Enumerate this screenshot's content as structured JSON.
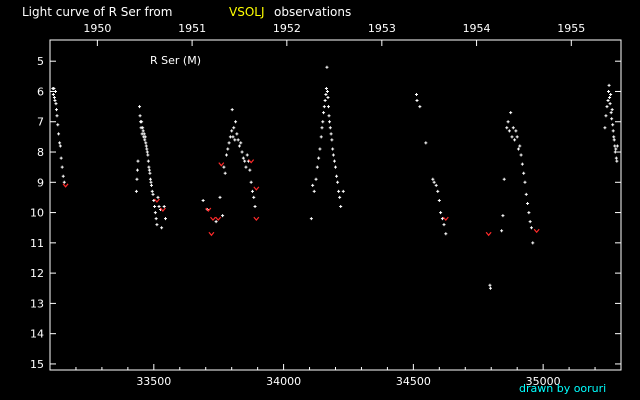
{
  "title": {
    "prefix": "Light curve of R Ser from",
    "source": "VSOLJ",
    "suffix": "observations"
  },
  "credit": "drawn by ooruri",
  "colors": {
    "background": "#000000",
    "axis": "#ffffff",
    "text": "#ffffff",
    "source_highlight": "#ffff00",
    "fainter_than": "#ff2a2a",
    "credit": "#00ffff"
  },
  "chart_data": {
    "type": "scatter",
    "annotation": "R Ser (M)",
    "x_axis": {
      "label": "",
      "range": [
        33100,
        35300
      ],
      "ticks": [
        33500,
        34000,
        34500,
        35000
      ],
      "tick_labels": [
        "33500",
        "34000",
        "34500",
        "35000"
      ]
    },
    "top_axis": {
      "years": [
        1950,
        1951,
        1952,
        1953,
        1954,
        1955
      ],
      "year_jd": [
        33282.5,
        33647.5,
        34012.5,
        34378.5,
        34743.5,
        35108.5
      ],
      "labels": [
        "1950",
        "1951",
        "1952",
        "1953",
        "1954",
        "1955"
      ]
    },
    "y_axis": {
      "label": "",
      "range": [
        4.3,
        15.2
      ],
      "inverted": true,
      "ticks": [
        5,
        6,
        7,
        8,
        9,
        10,
        11,
        12,
        13,
        14,
        15
      ],
      "tick_labels": [
        "5",
        "6",
        "7",
        "8",
        "9",
        "10",
        "11",
        "12",
        "13",
        "14",
        "15"
      ]
    },
    "grid": false,
    "series": [
      {
        "kind": "observation",
        "points": [
          [
            33111,
            5.9
          ],
          [
            33113,
            6.1
          ],
          [
            33115,
            5.9
          ],
          [
            33117,
            6.2
          ],
          [
            33119,
            6.3
          ],
          [
            33121,
            6.0
          ],
          [
            33123,
            6.4
          ],
          [
            33125,
            6.6
          ],
          [
            33127,
            6.8
          ],
          [
            33130,
            7.1
          ],
          [
            33133,
            7.4
          ],
          [
            33137,
            7.7
          ],
          [
            33140,
            7.8
          ],
          [
            33143,
            8.2
          ],
          [
            33147,
            8.5
          ],
          [
            33151,
            8.8
          ],
          [
            33155,
            9.0
          ],
          [
            33433,
            9.3
          ],
          [
            33435,
            8.9
          ],
          [
            33437,
            8.6
          ],
          [
            33439,
            8.3
          ],
          [
            33445,
            6.5
          ],
          [
            33447,
            6.8
          ],
          [
            33449,
            7.0
          ],
          [
            33451,
            7.2
          ],
          [
            33453,
            7.0
          ],
          [
            33455,
            7.4
          ],
          [
            33457,
            7.2
          ],
          [
            33459,
            7.3
          ],
          [
            33461,
            7.5
          ],
          [
            33463,
            7.4
          ],
          [
            33465,
            7.6
          ],
          [
            33467,
            7.5
          ],
          [
            33469,
            7.7
          ],
          [
            33471,
            7.8
          ],
          [
            33473,
            7.9
          ],
          [
            33475,
            8.0
          ],
          [
            33477,
            8.1
          ],
          [
            33479,
            8.3
          ],
          [
            33481,
            8.5
          ],
          [
            33483,
            8.6
          ],
          [
            33485,
            8.7
          ],
          [
            33487,
            8.9
          ],
          [
            33489,
            9.0
          ],
          [
            33491,
            9.1
          ],
          [
            33494,
            9.3
          ],
          [
            33497,
            9.4
          ],
          [
            33500,
            9.6
          ],
          [
            33503,
            9.8
          ],
          [
            33506,
            10.0
          ],
          [
            33509,
            10.2
          ],
          [
            33512,
            10.4
          ],
          [
            33516,
            9.5
          ],
          [
            33520,
            9.8
          ],
          [
            33526,
            9.9
          ],
          [
            33530,
            10.5
          ],
          [
            33540,
            9.8
          ],
          [
            33545,
            10.2
          ],
          [
            33690,
            9.6
          ],
          [
            33706,
            9.9
          ],
          [
            33740,
            10.3
          ],
          [
            33755,
            9.5
          ],
          [
            33765,
            10.1
          ],
          [
            33770,
            8.5
          ],
          [
            33775,
            8.7
          ],
          [
            33780,
            8.1
          ],
          [
            33785,
            7.9
          ],
          [
            33790,
            7.7
          ],
          [
            33795,
            7.5
          ],
          [
            33800,
            7.3
          ],
          [
            33802,
            6.6
          ],
          [
            33805,
            7.5
          ],
          [
            33808,
            7.2
          ],
          [
            33812,
            7.6
          ],
          [
            33815,
            7.0
          ],
          [
            33820,
            7.4
          ],
          [
            33825,
            7.6
          ],
          [
            33830,
            7.8
          ],
          [
            33835,
            7.7
          ],
          [
            33840,
            8.0
          ],
          [
            33845,
            8.2
          ],
          [
            33850,
            8.3
          ],
          [
            33855,
            8.5
          ],
          [
            33860,
            8.1
          ],
          [
            33865,
            8.3
          ],
          [
            33870,
            8.6
          ],
          [
            33875,
            9.0
          ],
          [
            33880,
            9.3
          ],
          [
            33885,
            9.5
          ],
          [
            33890,
            9.8
          ],
          [
            34107,
            10.2
          ],
          [
            34112,
            9.1
          ],
          [
            34118,
            9.3
          ],
          [
            34125,
            8.9
          ],
          [
            34130,
            8.5
          ],
          [
            34135,
            8.2
          ],
          [
            34140,
            7.9
          ],
          [
            34145,
            7.5
          ],
          [
            34148,
            7.2
          ],
          [
            34151,
            7.0
          ],
          [
            34154,
            6.7
          ],
          [
            34157,
            6.5
          ],
          [
            34160,
            6.3
          ],
          [
            34163,
            6.1
          ],
          [
            34165,
            5.9
          ],
          [
            34167,
            5.2
          ],
          [
            34169,
            6.0
          ],
          [
            34171,
            6.2
          ],
          [
            34173,
            6.5
          ],
          [
            34175,
            6.8
          ],
          [
            34177,
            7.0
          ],
          [
            34180,
            7.2
          ],
          [
            34183,
            7.4
          ],
          [
            34186,
            7.6
          ],
          [
            34189,
            7.9
          ],
          [
            34192,
            8.1
          ],
          [
            34196,
            8.3
          ],
          [
            34200,
            8.5
          ],
          [
            34204,
            8.8
          ],
          [
            34208,
            9.0
          ],
          [
            34212,
            9.3
          ],
          [
            34216,
            9.5
          ],
          [
            34220,
            9.8
          ],
          [
            34230,
            9.3
          ],
          [
            34512,
            6.1
          ],
          [
            34514,
            6.3
          ],
          [
            34525,
            6.5
          ],
          [
            34548,
            7.7
          ],
          [
            34575,
            8.9
          ],
          [
            34580,
            9.0
          ],
          [
            34588,
            9.1
          ],
          [
            34594,
            9.3
          ],
          [
            34600,
            9.6
          ],
          [
            34605,
            10.0
          ],
          [
            34612,
            10.2
          ],
          [
            34618,
            10.4
          ],
          [
            34625,
            10.7
          ],
          [
            34795,
            12.4
          ],
          [
            34797,
            12.5
          ],
          [
            34840,
            10.6
          ],
          [
            34845,
            10.1
          ],
          [
            34850,
            8.9
          ],
          [
            34860,
            7.2
          ],
          [
            34865,
            7.0
          ],
          [
            34870,
            7.3
          ],
          [
            34875,
            6.7
          ],
          [
            34880,
            7.5
          ],
          [
            34885,
            7.2
          ],
          [
            34890,
            7.6
          ],
          [
            34895,
            7.3
          ],
          [
            34900,
            7.5
          ],
          [
            34905,
            7.9
          ],
          [
            34910,
            7.8
          ],
          [
            34915,
            8.1
          ],
          [
            34920,
            8.4
          ],
          [
            34925,
            8.7
          ],
          [
            34930,
            9.0
          ],
          [
            34935,
            9.4
          ],
          [
            34940,
            9.7
          ],
          [
            34945,
            10.0
          ],
          [
            34950,
            10.3
          ],
          [
            34955,
            10.5
          ],
          [
            34960,
            11.0
          ],
          [
            35238,
            7.2
          ],
          [
            35242,
            6.8
          ],
          [
            35246,
            6.5
          ],
          [
            35250,
            6.3
          ],
          [
            35252,
            6.0
          ],
          [
            35254,
            5.8
          ],
          [
            35256,
            6.2
          ],
          [
            35258,
            6.4
          ],
          [
            35260,
            6.1
          ],
          [
            35262,
            6.7
          ],
          [
            35264,
            6.9
          ],
          [
            35266,
            6.6
          ],
          [
            35268,
            7.1
          ],
          [
            35270,
            7.3
          ],
          [
            35272,
            7.5
          ],
          [
            35274,
            7.6
          ],
          [
            35276,
            7.8
          ],
          [
            35278,
            8.0
          ],
          [
            35280,
            7.9
          ],
          [
            35282,
            8.2
          ],
          [
            35284,
            8.3
          ],
          [
            35286,
            7.8
          ]
        ]
      },
      {
        "kind": "fainter-than",
        "points": [
          [
            33160,
            9.1
          ],
          [
            33512,
            9.6
          ],
          [
            33535,
            9.9
          ],
          [
            33710,
            9.9
          ],
          [
            33722,
            10.7
          ],
          [
            33728,
            10.2
          ],
          [
            33748,
            10.2
          ],
          [
            33760,
            8.4
          ],
          [
            33875,
            8.3
          ],
          [
            33895,
            9.2
          ],
          [
            33895,
            10.2
          ],
          [
            34625,
            10.2
          ],
          [
            34790,
            10.7
          ],
          [
            34975,
            10.6
          ]
        ]
      }
    ]
  }
}
